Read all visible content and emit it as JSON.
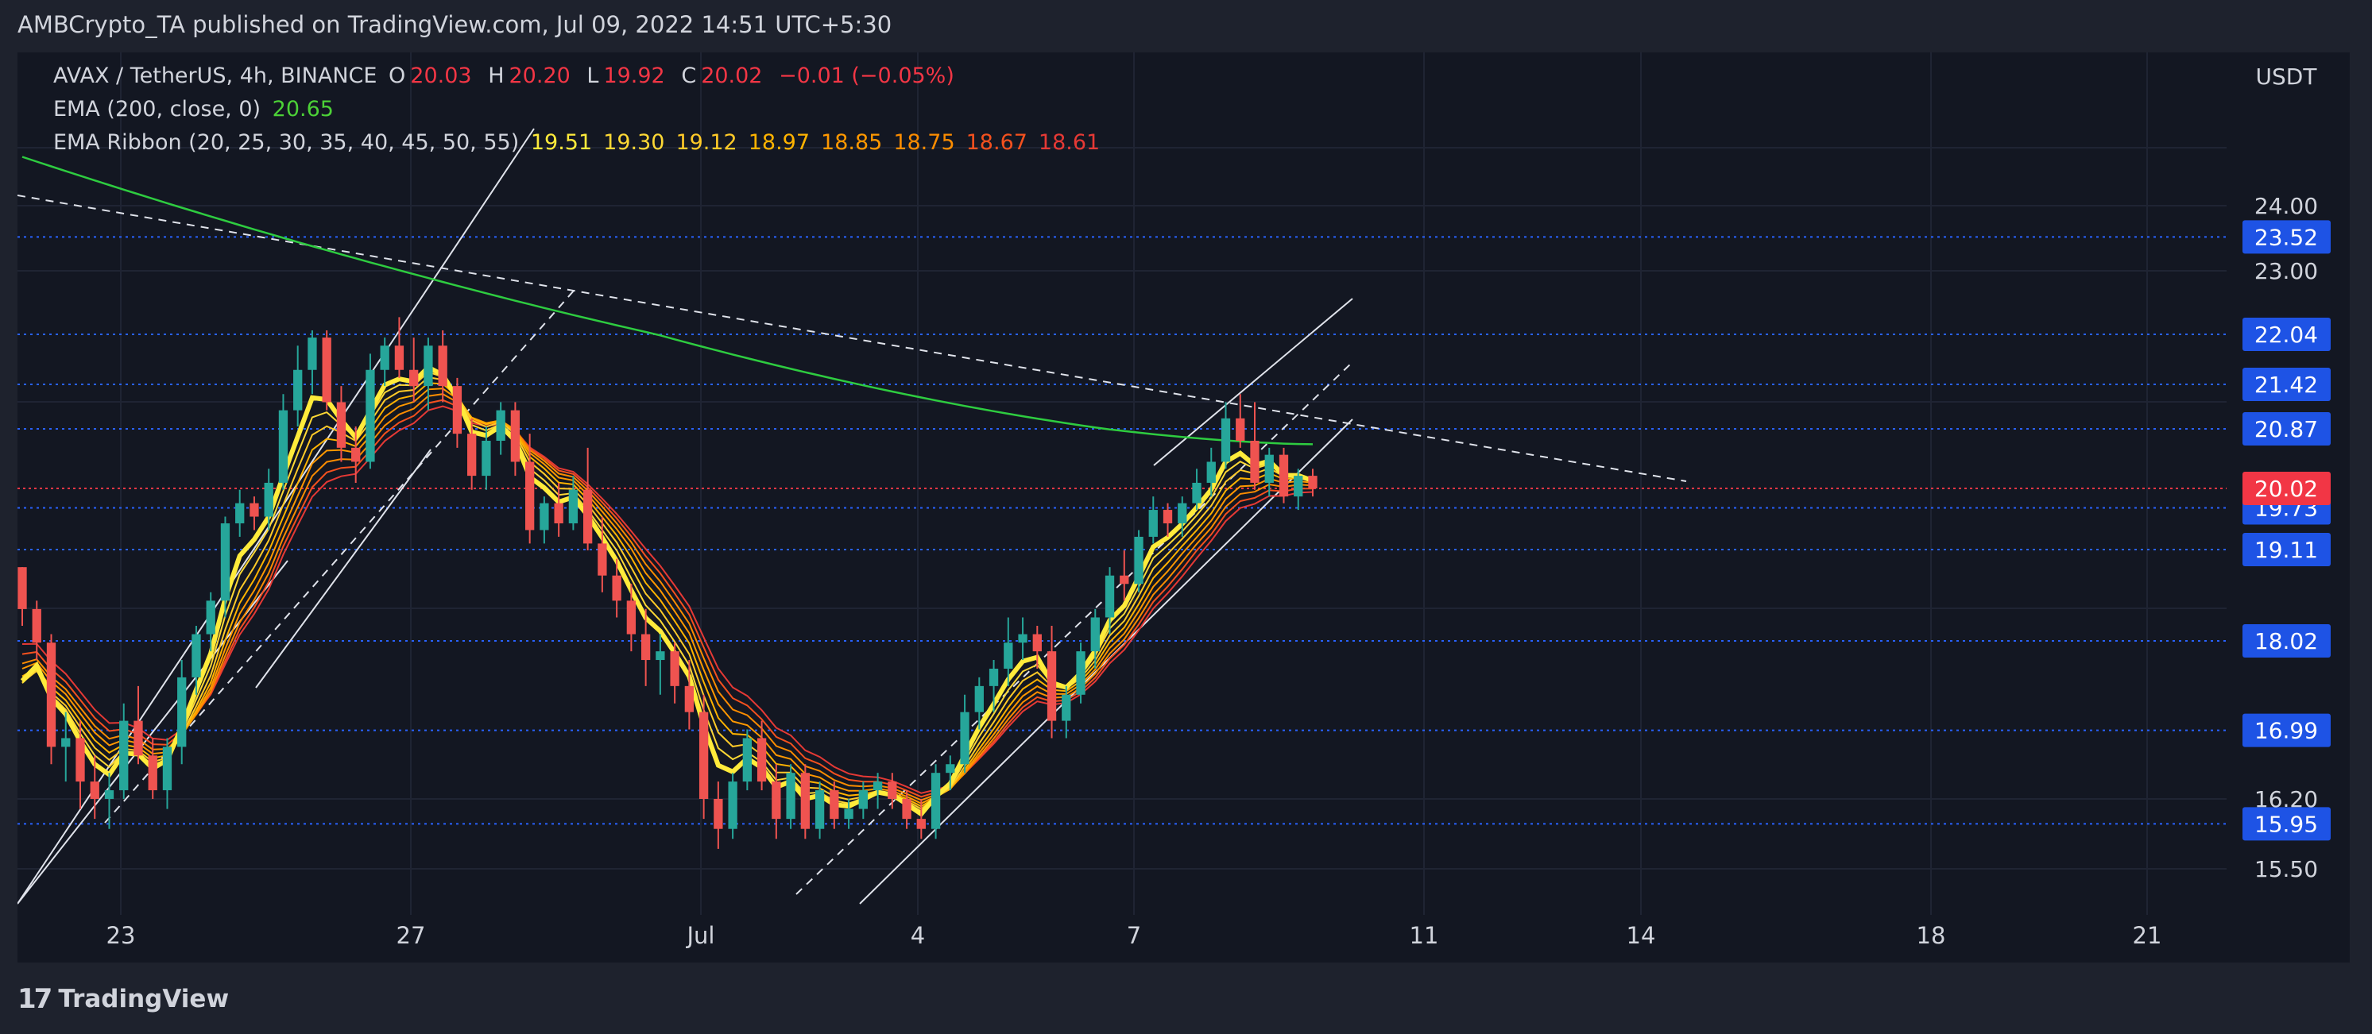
{
  "header": {
    "publisher": "AMBCrypto_TA published on TradingView.com, Jul 09, 2022 14:51 UTC+5:30"
  },
  "legend": {
    "symbol": "AVAX / TetherUS, 4h, BINANCE",
    "open_label": "O",
    "open": "20.03",
    "high_label": "H",
    "high": "20.20",
    "low_label": "L",
    "low": "19.92",
    "close_label": "C",
    "close": "20.02",
    "change": "−0.01 (−0.05%)",
    "ema_label": "EMA (200, close, 0)",
    "ema_value": "20.65",
    "ribbon_label": "EMA Ribbon (20, 25, 30, 35, 40, 45, 50, 55)",
    "ribbon_values": [
      "19.51",
      "19.30",
      "19.12",
      "18.97",
      "18.85",
      "18.75",
      "18.67",
      "18.61"
    ],
    "ribbon_colors": [
      "#ffeb3b",
      "#fdd835",
      "#ffca28",
      "#ffb300",
      "#ff9800",
      "#fb8c00",
      "#f4511e",
      "#e53935"
    ]
  },
  "footer": {
    "brand": "TradingView"
  },
  "chart_data": {
    "type": "candlestick",
    "currency": "USDT",
    "y_ticks": [
      "24.00",
      "23.00",
      "16.20",
      "15.50"
    ],
    "y_range": [
      15.2,
      24.8
    ],
    "x_ticks": [
      "23",
      "27",
      "Jul",
      "4",
      "7",
      "11",
      "14",
      "18",
      "21"
    ],
    "support_resistance_levels": [
      {
        "label": "23.52",
        "value": 23.52
      },
      {
        "label": "22.04",
        "value": 22.04
      },
      {
        "label": "21.42",
        "value": 21.42
      },
      {
        "label": "20.87",
        "value": 20.87
      },
      {
        "label": "19.73",
        "value": 19.73
      },
      {
        "label": "19.11",
        "value": 19.11
      },
      {
        "label": "18.02",
        "value": 18.02
      },
      {
        "label": "16.99",
        "value": 16.99
      },
      {
        "label": "15.95",
        "value": 15.95
      }
    ],
    "current_price": {
      "label": "20.02",
      "value": 20.02
    },
    "colors": {
      "up": "#26a69a",
      "down": "#ef5350",
      "level": "#2962ff",
      "ema200": "#2ecc40",
      "price_line": "#f23645"
    },
    "candles": [
      [
        18.9,
        18.9,
        18.2,
        18.4
      ],
      [
        18.4,
        18.5,
        17.8,
        18.0
      ],
      [
        18.0,
        18.1,
        16.6,
        16.8
      ],
      [
        16.8,
        17.2,
        16.4,
        16.9
      ],
      [
        16.9,
        17.1,
        16.1,
        16.4
      ],
      [
        16.4,
        16.7,
        16.0,
        16.2
      ],
      [
        16.2,
        16.5,
        15.9,
        16.3
      ],
      [
        16.3,
        17.3,
        16.2,
        17.1
      ],
      [
        17.1,
        17.5,
        16.6,
        16.7
      ],
      [
        16.7,
        16.9,
        16.2,
        16.3
      ],
      [
        16.3,
        16.9,
        16.1,
        16.8
      ],
      [
        16.8,
        17.8,
        16.6,
        17.6
      ],
      [
        17.6,
        18.2,
        17.4,
        18.1
      ],
      [
        18.1,
        18.6,
        17.9,
        18.5
      ],
      [
        18.5,
        19.6,
        18.3,
        19.5
      ],
      [
        19.5,
        20.0,
        19.3,
        19.8
      ],
      [
        19.8,
        19.9,
        19.4,
        19.6
      ],
      [
        19.6,
        20.3,
        19.4,
        20.1
      ],
      [
        20.1,
        21.3,
        20.0,
        21.1
      ],
      [
        21.1,
        21.9,
        20.9,
        21.6
      ],
      [
        21.6,
        22.1,
        21.3,
        22.0
      ],
      [
        22.0,
        22.1,
        21.1,
        21.2
      ],
      [
        21.2,
        21.4,
        20.4,
        20.6
      ],
      [
        20.6,
        20.9,
        20.1,
        20.4
      ],
      [
        20.4,
        21.8,
        20.3,
        21.6
      ],
      [
        21.6,
        22.0,
        21.4,
        21.9
      ],
      [
        21.9,
        22.3,
        21.5,
        21.6
      ],
      [
        21.6,
        22.0,
        21.2,
        21.4
      ],
      [
        21.4,
        22.0,
        21.1,
        21.9
      ],
      [
        21.9,
        22.1,
        21.2,
        21.4
      ],
      [
        21.4,
        21.5,
        20.6,
        20.8
      ],
      [
        20.8,
        21.0,
        20.0,
        20.2
      ],
      [
        20.2,
        20.9,
        20.0,
        20.7
      ],
      [
        20.7,
        21.2,
        20.5,
        21.1
      ],
      [
        21.1,
        21.2,
        20.2,
        20.4
      ],
      [
        20.4,
        20.8,
        19.2,
        19.4
      ],
      [
        19.4,
        19.9,
        19.2,
        19.8
      ],
      [
        19.8,
        20.1,
        19.3,
        19.5
      ],
      [
        19.5,
        20.2,
        19.4,
        20.0
      ],
      [
        20.0,
        20.6,
        19.1,
        19.2
      ],
      [
        19.2,
        19.6,
        18.6,
        18.8
      ],
      [
        18.8,
        19.0,
        18.3,
        18.5
      ],
      [
        18.5,
        18.7,
        17.9,
        18.1
      ],
      [
        18.1,
        18.4,
        17.5,
        17.8
      ],
      [
        17.8,
        18.1,
        17.4,
        17.9
      ],
      [
        17.9,
        18.0,
        17.3,
        17.5
      ],
      [
        17.5,
        17.8,
        17.0,
        17.2
      ],
      [
        17.2,
        17.4,
        16.0,
        16.2
      ],
      [
        16.2,
        16.4,
        15.7,
        15.9
      ],
      [
        15.9,
        16.5,
        15.8,
        16.4
      ],
      [
        16.4,
        17.0,
        16.3,
        16.9
      ],
      [
        16.9,
        17.1,
        16.3,
        16.4
      ],
      [
        16.4,
        16.6,
        15.8,
        16.0
      ],
      [
        16.0,
        16.6,
        15.9,
        16.5
      ],
      [
        16.5,
        16.6,
        15.8,
        15.9
      ],
      [
        15.9,
        16.4,
        15.8,
        16.3
      ],
      [
        16.3,
        16.4,
        15.9,
        16.0
      ],
      [
        16.0,
        16.2,
        15.9,
        16.1
      ],
      [
        16.1,
        16.4,
        16.0,
        16.3
      ],
      [
        16.3,
        16.5,
        16.1,
        16.4
      ],
      [
        16.4,
        16.5,
        16.1,
        16.2
      ],
      [
        16.2,
        16.3,
        15.9,
        16.0
      ],
      [
        16.0,
        16.2,
        15.8,
        15.9
      ],
      [
        15.9,
        16.6,
        15.8,
        16.5
      ],
      [
        16.5,
        16.7,
        16.3,
        16.6
      ],
      [
        16.6,
        17.4,
        16.5,
        17.2
      ],
      [
        17.2,
        17.6,
        17.0,
        17.5
      ],
      [
        17.5,
        17.8,
        17.2,
        17.7
      ],
      [
        17.7,
        18.3,
        17.5,
        18.0
      ],
      [
        18.0,
        18.3,
        17.8,
        18.1
      ],
      [
        18.1,
        18.2,
        17.7,
        17.9
      ],
      [
        17.9,
        18.2,
        16.9,
        17.1
      ],
      [
        17.1,
        17.5,
        16.9,
        17.4
      ],
      [
        17.4,
        18.0,
        17.3,
        17.9
      ],
      [
        17.9,
        18.4,
        17.7,
        18.3
      ],
      [
        18.3,
        18.9,
        18.1,
        18.8
      ],
      [
        18.8,
        19.1,
        18.5,
        18.7
      ],
      [
        18.7,
        19.4,
        18.6,
        19.3
      ],
      [
        19.3,
        19.9,
        19.2,
        19.7
      ],
      [
        19.7,
        19.8,
        19.3,
        19.5
      ],
      [
        19.5,
        19.9,
        19.3,
        19.8
      ],
      [
        19.8,
        20.3,
        19.7,
        20.1
      ],
      [
        20.1,
        20.6,
        19.9,
        20.4
      ],
      [
        20.4,
        21.2,
        20.3,
        21.0
      ],
      [
        21.0,
        21.3,
        20.6,
        20.7
      ],
      [
        20.7,
        21.2,
        20.0,
        20.1
      ],
      [
        20.1,
        20.6,
        19.9,
        20.5
      ],
      [
        20.5,
        20.6,
        19.8,
        19.9
      ],
      [
        19.9,
        20.3,
        19.7,
        20.2
      ],
      [
        20.2,
        20.3,
        19.9,
        20.02
      ]
    ]
  }
}
